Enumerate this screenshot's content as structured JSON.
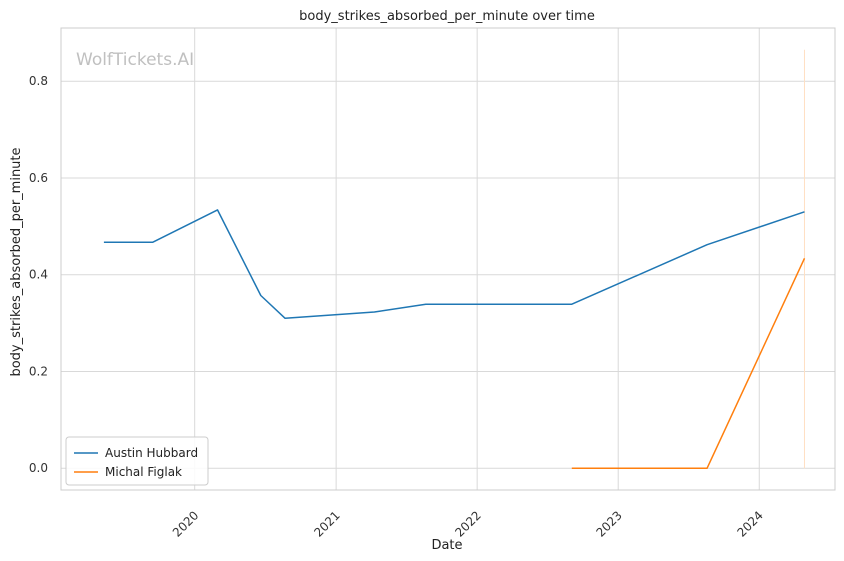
{
  "chart_data": {
    "type": "line",
    "title": "body_strikes_absorbed_per_minute over time",
    "xlabel": "Date",
    "ylabel": "body_strikes_absorbed_per_minute",
    "watermark": "WolfTickets.AI",
    "x_type": "date",
    "xlim": [
      "2019-01-20",
      "2024-07-15"
    ],
    "ylim": [
      -0.045,
      0.91
    ],
    "x_ticks": [
      {
        "value": "2020-01-01",
        "label": "2020"
      },
      {
        "value": "2021-01-01",
        "label": "2021"
      },
      {
        "value": "2022-01-01",
        "label": "2022"
      },
      {
        "value": "2023-01-01",
        "label": "2023"
      },
      {
        "value": "2024-01-01",
        "label": "2024"
      }
    ],
    "y_ticks": [
      {
        "value": 0.0,
        "label": "0.0"
      },
      {
        "value": 0.2,
        "label": "0.2"
      },
      {
        "value": 0.4,
        "label": "0.4"
      },
      {
        "value": 0.6,
        "label": "0.6"
      },
      {
        "value": 0.8,
        "label": "0.8"
      }
    ],
    "grid": true,
    "legend_position": "lower-left",
    "series": [
      {
        "name": "Austin Hubbard",
        "color": "#1f77b4",
        "points": [
          {
            "x": "2019-05-11",
            "y": 0.467
          },
          {
            "x": "2019-09-14",
            "y": 0.467
          },
          {
            "x": "2020-02-29",
            "y": 0.534
          },
          {
            "x": "2020-06-20",
            "y": 0.357
          },
          {
            "x": "2020-08-22",
            "y": 0.31
          },
          {
            "x": "2021-04-10",
            "y": 0.323
          },
          {
            "x": "2021-08-21",
            "y": 0.339
          },
          {
            "x": "2022-09-03",
            "y": 0.339
          },
          {
            "x": "2023-08-19",
            "y": 0.462
          },
          {
            "x": "2024-04-27",
            "y": 0.53
          }
        ]
      },
      {
        "name": "Michal Figlak",
        "color": "#ff7f0e",
        "points": [
          {
            "x": "2022-09-03",
            "y": 0.0
          },
          {
            "x": "2023-08-19",
            "y": 0.0
          },
          {
            "x": "2024-04-27",
            "y": 0.434
          }
        ]
      }
    ],
    "vertical_marker": {
      "x": "2024-04-27",
      "y_from": 0.0,
      "y_to": 0.865,
      "color": "#ffe0c2"
    }
  }
}
